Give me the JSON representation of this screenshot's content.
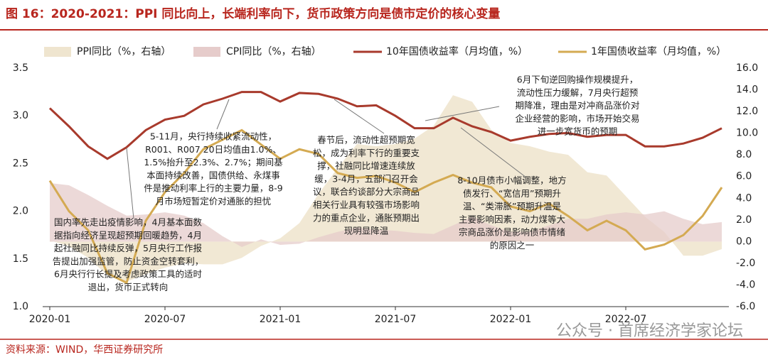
{
  "chart_data": {
    "type": "combo",
    "title": "图 16：2020-2021：PPI 同比向上，长端利率向下，货币政策方向是债市定价的核心变量",
    "source": "资料来源：WIND，华西证券研究所",
    "watermark": "公众号 · 首席经济学家论坛",
    "categories": [
      "2020-01",
      null,
      null,
      null,
      null,
      null,
      "2020-07",
      null,
      null,
      null,
      null,
      null,
      "2021-01",
      null,
      null,
      null,
      null,
      null,
      "2021-07",
      null,
      null,
      null,
      null,
      null,
      "2022-01",
      null,
      null,
      null,
      null,
      null,
      "2022-07",
      null,
      null,
      null,
      null,
      null
    ],
    "ylim": [
      1.0,
      3.5
    ],
    "yticks": [
      {
        "value": 1.0,
        "label": "1.0"
      },
      1.5,
      {
        "value": 2.0,
        "label": "2.0"
      },
      2.5,
      {
        "value": 3.0,
        "label": "3.0"
      },
      3.5
    ],
    "y2lim": [
      -6.0,
      16.0
    ],
    "y2ticks": [
      {
        "value": -6.0,
        "label": "-6.0"
      },
      {
        "value": -4.0,
        "label": "-4.0"
      },
      {
        "value": -2.0,
        "label": "-2.0"
      },
      {
        "value": 0.0,
        "label": "0.0"
      },
      {
        "value": 2.0,
        "label": "2.0"
      },
      {
        "value": 4.0,
        "label": "4.0"
      },
      {
        "value": 6.0,
        "label": "6.0"
      },
      {
        "value": 8.0,
        "label": "8.0"
      },
      {
        "value": 10.0,
        "label": "10.0"
      },
      {
        "value": 12.0,
        "label": "12.0"
      },
      {
        "value": 14.0,
        "label": "14.0"
      },
      {
        "value": 16.0,
        "label": "16.0"
      }
    ],
    "series": [
      {
        "name": "PPI同比（%，右轴）",
        "type": "area",
        "axis": "y2",
        "color": "#efe5cf",
        "values": [
          0.1,
          -0.4,
          -1.5,
          -3.1,
          -3.7,
          -3.0,
          -2.4,
          -2.0,
          -2.1,
          -2.1,
          -1.5,
          -0.4,
          0.3,
          1.7,
          4.4,
          6.8,
          9.0,
          8.8,
          9.0,
          9.5,
          10.7,
          13.5,
          12.9,
          10.3,
          9.1,
          8.8,
          8.3,
          8.0,
          6.4,
          6.1,
          4.2,
          2.3,
          0.9,
          -1.3,
          -1.3,
          -0.7
        ]
      },
      {
        "name": "CPI同比（%，右轴）",
        "type": "area",
        "axis": "y2",
        "color": "#e6cccb",
        "values": [
          5.4,
          5.2,
          4.3,
          3.3,
          2.4,
          2.5,
          2.7,
          2.4,
          1.7,
          0.5,
          -0.5,
          0.2,
          -0.3,
          -0.2,
          0.4,
          0.9,
          1.3,
          1.1,
          1.0,
          0.8,
          0.7,
          1.5,
          2.3,
          1.5,
          0.9,
          0.9,
          1.5,
          2.1,
          2.1,
          2.5,
          2.7,
          2.5,
          2.8,
          2.1,
          1.6,
          1.8
        ]
      },
      {
        "name": "10年国债收益率（月均值，%）",
        "type": "line",
        "color": "#a83a2c",
        "values": [
          3.08,
          2.89,
          2.68,
          2.55,
          2.67,
          2.85,
          2.96,
          3.0,
          3.12,
          3.18,
          3.25,
          3.25,
          3.15,
          3.24,
          3.23,
          3.18,
          3.1,
          3.11,
          3.0,
          2.87,
          2.87,
          2.98,
          2.89,
          2.83,
          2.74,
          2.78,
          2.81,
          2.82,
          2.78,
          2.8,
          2.8,
          2.68,
          2.68,
          2.71,
          2.77,
          2.87
        ]
      },
      {
        "name": "1年国债收益率（月均值，%）",
        "type": "line",
        "color": "#d4aa52",
        "values": [
          2.32,
          2.0,
          1.8,
          1.35,
          1.25,
          1.9,
          2.2,
          2.4,
          2.65,
          2.75,
          2.85,
          2.7,
          2.55,
          2.65,
          2.6,
          2.4,
          2.35,
          2.37,
          2.3,
          2.2,
          2.3,
          2.38,
          2.3,
          2.25,
          2.05,
          2.0,
          2.08,
          1.95,
          1.8,
          1.9,
          1.8,
          1.6,
          1.65,
          1.75,
          1.95,
          2.25
        ]
      }
    ],
    "annotations": [
      [
        "5-11月，央行持续收紧流动性，",
        "R001、R007 20日均值由1.0%、",
        "1.5%抬升至2.3%、2.7%；期间基",
        "本面持续改善，国债供给、永煤事",
        "件是推动利率上行的主要力量，8-9",
        "月市场短暂定价对通胀的担忧"
      ],
      [
        "国内率先走出疫情影响，4月基本面数",
        "据指向经济呈现超预期回暖趋势，4月",
        "起社融同比持续反弹，5月央行工作报",
        "告提出加强监管，防止资金空转套利，",
        "6月央行行长提及考虑政策工具的适时",
        "退出，货币正式转向"
      ],
      [
        "春节后，流动性超预期宽",
        "松，成为利率下行的重要支",
        "撑，社融同比增速连续放",
        "缓，3-4月，五部门召开会",
        "议，联合约谈部分大宗商品",
        "相关行业具有较强市场影响",
        "力的重点企业，通胀预期出",
        "现明显降温"
      ],
      [
        "6月下旬逆回购操作规模提升，",
        "流动性压力缓解，7月央行超预",
        "期降准，理由是对冲商品涨价对",
        "企业经营的影响，市场开始交易",
        "进一步宽货币的预期"
      ],
      [
        "8-10月债市小幅调整，地方",
        "债发行、“宽信用”预期升",
        "温、“类滞胀”预期升温是",
        "主要影响因素，动力煤等大",
        "宗商品涨价是影响债市情绪",
        "的原因之一"
      ]
    ]
  }
}
